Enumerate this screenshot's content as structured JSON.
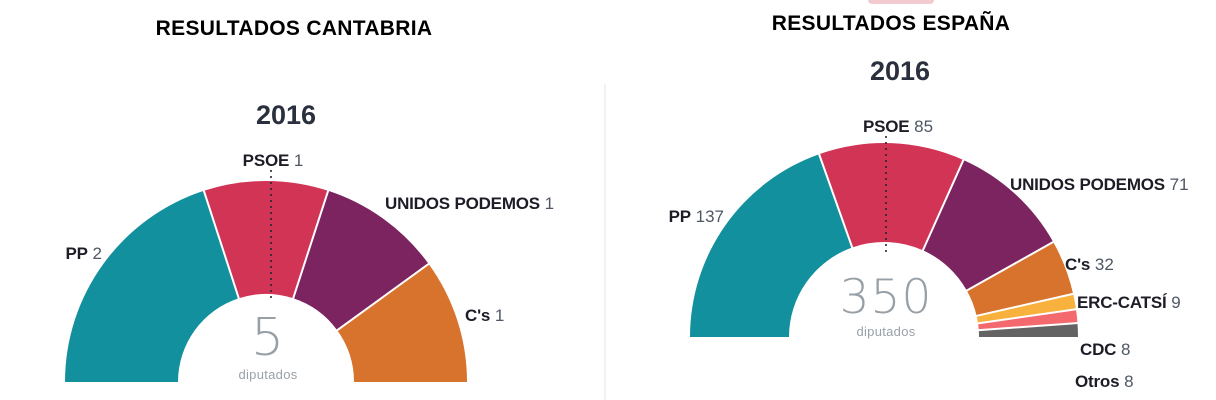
{
  "divider_color": "#f1f1f1",
  "artifact_color": "#f2cad0",
  "chart_data": [
    {
      "type": "hemicycle-donut",
      "title": "RESULTADOS CANTABRIA",
      "subtitle": "2016",
      "center_value": "5",
      "center_label": "diputados",
      "total_seats": 5,
      "legend_position": "around-arc",
      "parties": [
        {
          "name": "PP",
          "seats": 2,
          "color": "#13909d"
        },
        {
          "name": "PSOE",
          "seats": 1,
          "color": "#d23456"
        },
        {
          "name": "UNIDOS PODEMOS",
          "seats": 1,
          "color": "#7b2460"
        },
        {
          "name": "C's",
          "seats": 1,
          "color": "#d8732d"
        }
      ]
    },
    {
      "type": "hemicycle-donut",
      "title": "RESULTADOS ESPAÑA",
      "subtitle": "2016",
      "center_value": "350",
      "center_label": "diputados",
      "total_seats": 350,
      "legend_position": "around-arc",
      "parties": [
        {
          "name": "PP",
          "seats": 137,
          "color": "#13909d"
        },
        {
          "name": "PSOE",
          "seats": 85,
          "color": "#d23456"
        },
        {
          "name": "UNIDOS PODEMOS",
          "seats": 71,
          "color": "#7b2460"
        },
        {
          "name": "C's",
          "seats": 32,
          "color": "#d8732d"
        },
        {
          "name": "ERC-CATSÍ",
          "seats": 9,
          "color": "#f8b13d"
        },
        {
          "name": "CDC",
          "seats": 8,
          "color": "#f4696e"
        },
        {
          "name": "Otros",
          "seats": 8,
          "color": "#636363"
        }
      ]
    }
  ]
}
